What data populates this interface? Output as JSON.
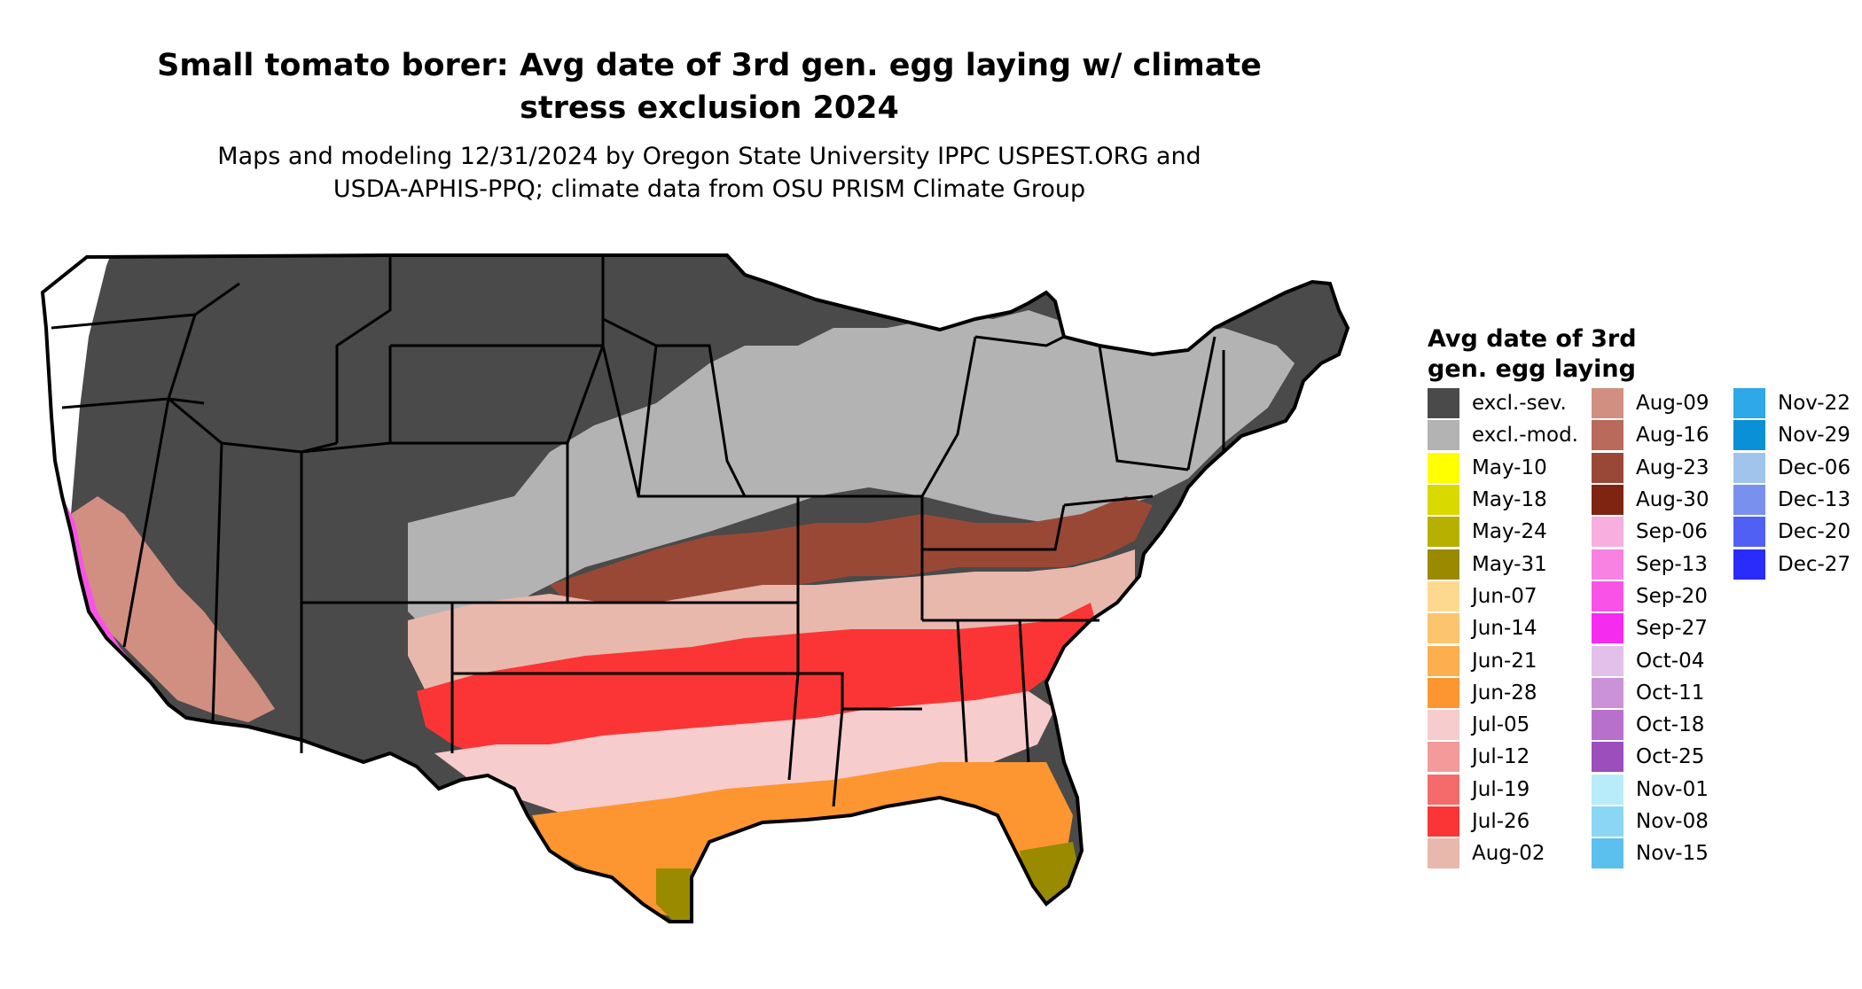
{
  "title_line1": "Small tomato borer: Avg date of 3rd gen. egg laying w/ climate",
  "title_line2": "stress exclusion 2024",
  "subtitle_line1": "Maps and modeling 12/31/2024 by Oregon State University IPPC USPEST.ORG and",
  "subtitle_line2": "USDA-APHIS-PPQ; climate data from OSU PRISM Climate Group",
  "legend": {
    "title_line1": "Avg date of 3rd",
    "title_line2": "gen. egg laying",
    "columns": [
      [
        {
          "label": "excl.-sev.",
          "color": "#4a4a4a"
        },
        {
          "label": "excl.-mod.",
          "color": "#b3b3b3"
        },
        {
          "label": "May-10",
          "color": "#ffff00"
        },
        {
          "label": "May-18",
          "color": "#d9d900"
        },
        {
          "label": "May-24",
          "color": "#b8b000"
        },
        {
          "label": "May-31",
          "color": "#9a8a00"
        },
        {
          "label": "Jun-07",
          "color": "#fdd98f"
        },
        {
          "label": "Jun-14",
          "color": "#fdc46e"
        },
        {
          "label": "Jun-21",
          "color": "#fdae4e"
        },
        {
          "label": "Jun-28",
          "color": "#fd9630"
        },
        {
          "label": "Jul-05",
          "color": "#f6cccc"
        },
        {
          "label": "Jul-12",
          "color": "#f49a9a"
        },
        {
          "label": "Jul-19",
          "color": "#f56a6a"
        },
        {
          "label": "Jul-26",
          "color": "#fb3535"
        },
        {
          "label": "Aug-02",
          "color": "#e8b8ad"
        }
      ],
      [
        {
          "label": "Aug-09",
          "color": "#d18f81"
        },
        {
          "label": "Aug-16",
          "color": "#b96a5a"
        },
        {
          "label": "Aug-23",
          "color": "#9a4836"
        },
        {
          "label": "Aug-30",
          "color": "#7e2410"
        },
        {
          "label": "Sep-06",
          "color": "#f9aee0"
        },
        {
          "label": "Sep-13",
          "color": "#f882e2"
        },
        {
          "label": "Sep-20",
          "color": "#f853e6"
        },
        {
          "label": "Sep-27",
          "color": "#f62bf0"
        },
        {
          "label": "Oct-04",
          "color": "#e2c0ea"
        },
        {
          "label": "Oct-11",
          "color": "#cb92d8"
        },
        {
          "label": "Oct-18",
          "color": "#b770cc"
        },
        {
          "label": "Oct-25",
          "color": "#9c4ebd"
        },
        {
          "label": "Nov-01",
          "color": "#b9ecfb"
        },
        {
          "label": "Nov-08",
          "color": "#8bd6f4"
        },
        {
          "label": "Nov-15",
          "color": "#5cc0ee"
        }
      ],
      [
        {
          "label": "Nov-22",
          "color": "#2ea8e6"
        },
        {
          "label": "Nov-29",
          "color": "#0a90d6"
        },
        {
          "label": "Dec-06",
          "color": "#a0c4ec"
        },
        {
          "label": "Dec-13",
          "color": "#7a90ee"
        },
        {
          "label": "Dec-20",
          "color": "#5060f4"
        },
        {
          "label": "Dec-27",
          "color": "#2a2cfb"
        }
      ]
    ]
  }
}
